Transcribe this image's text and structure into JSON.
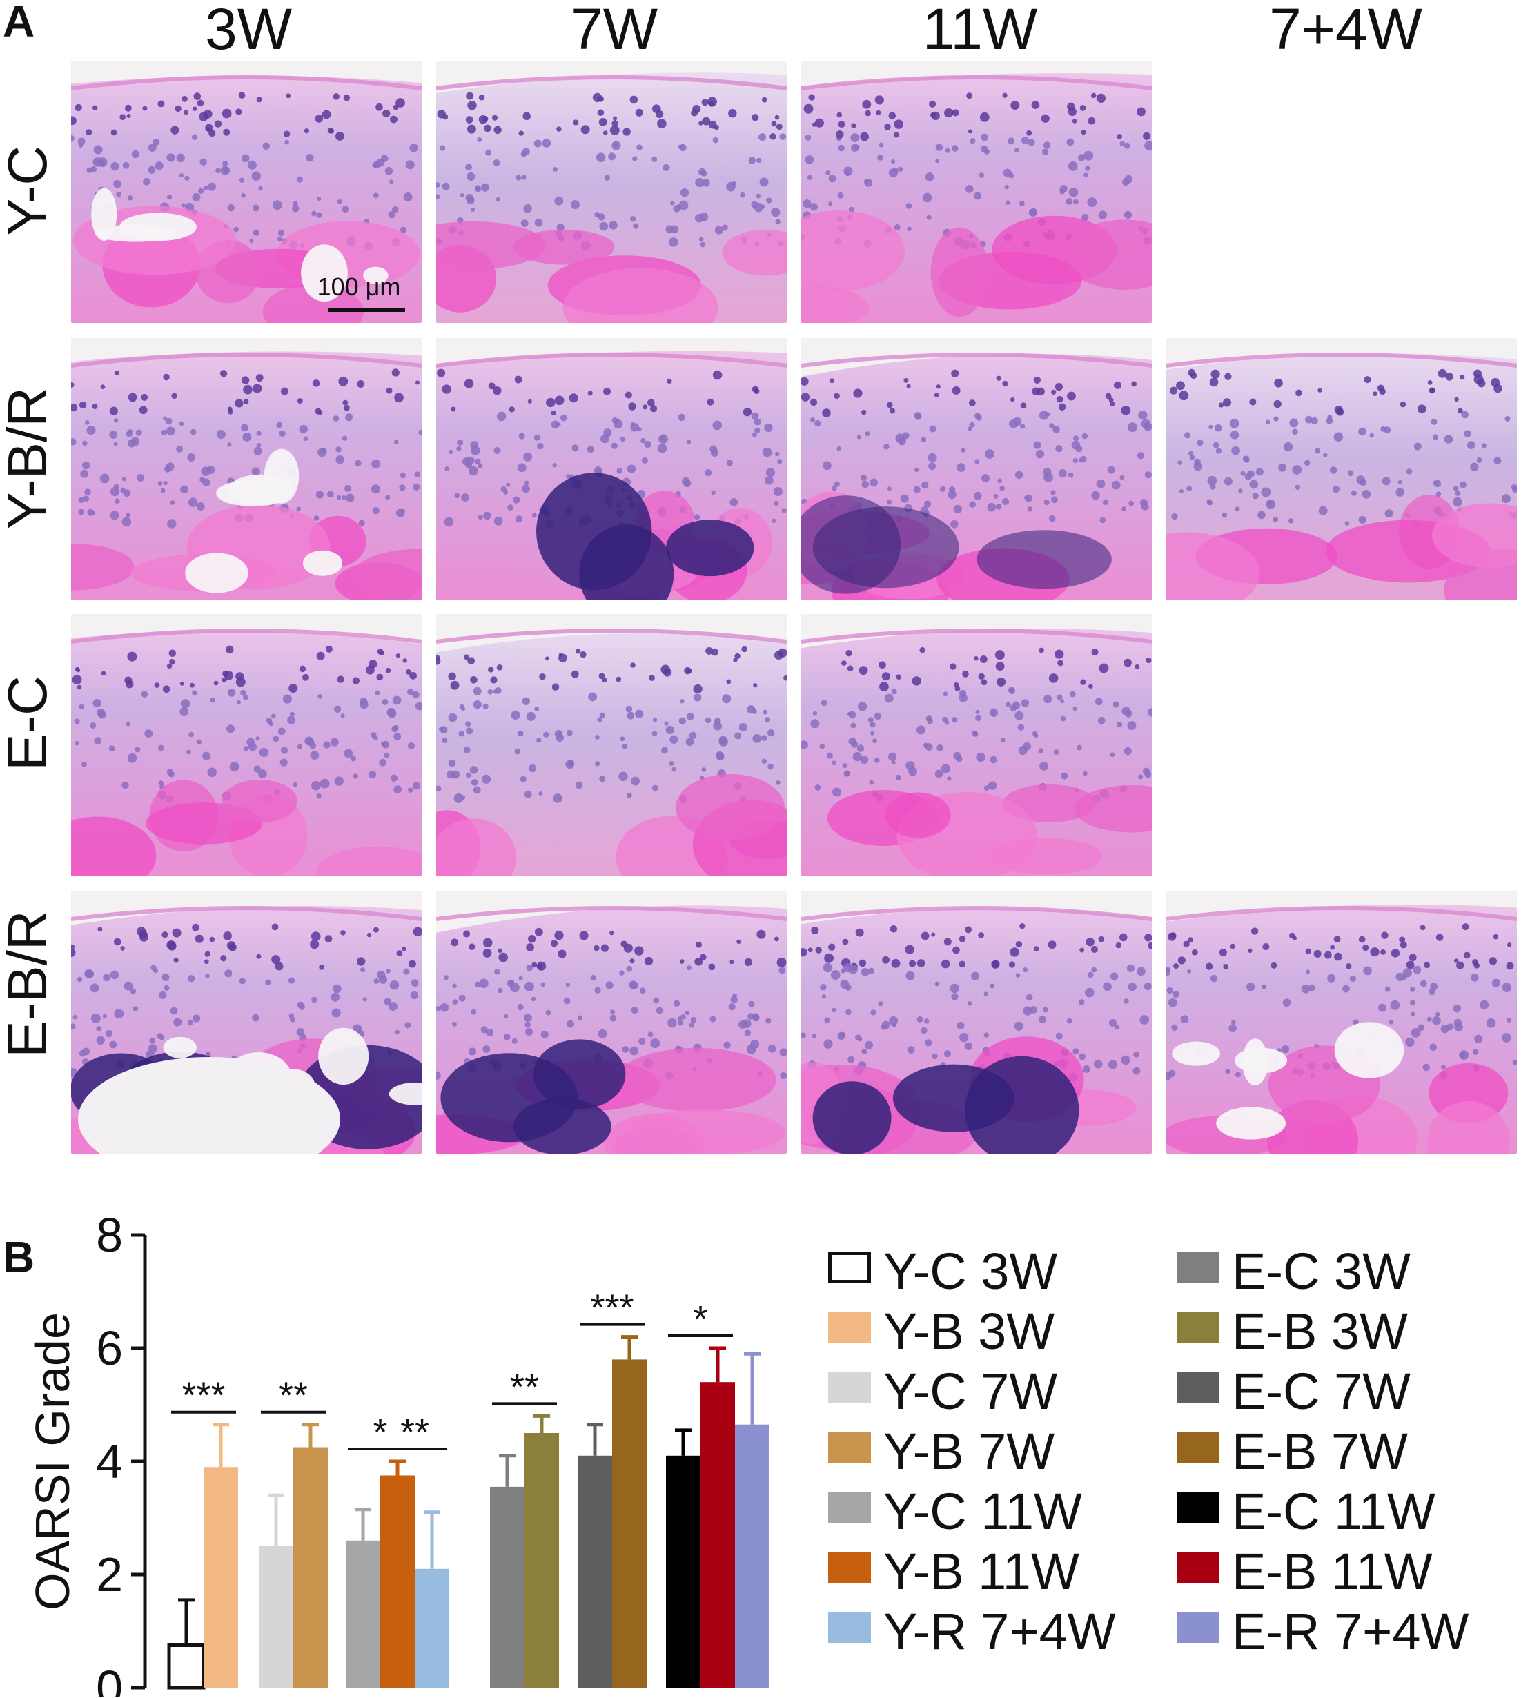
{
  "panel_a": {
    "letter": "A",
    "columns": [
      "3W",
      "7W",
      "11W",
      "7+4W"
    ],
    "rows": [
      "Y-C",
      "Y-B/R",
      "E-C",
      "E-B/R"
    ],
    "scale_bar": "100 μm",
    "panels": [
      {
        "row": 0,
        "col": 0,
        "style": "bone-heavy"
      },
      {
        "row": 0,
        "col": 1,
        "style": "cartilage"
      },
      {
        "row": 0,
        "col": 2,
        "style": "cartilage-pink"
      },
      {
        "row": 1,
        "col": 0,
        "style": "bone-heavy"
      },
      {
        "row": 1,
        "col": 1,
        "style": "marrow"
      },
      {
        "row": 1,
        "col": 2,
        "style": "marrow-light"
      },
      {
        "row": 1,
        "col": 3,
        "style": "cartilage"
      },
      {
        "row": 2,
        "col": 0,
        "style": "cartilage-pink"
      },
      {
        "row": 2,
        "col": 1,
        "style": "cartilage"
      },
      {
        "row": 2,
        "col": 2,
        "style": "cartilage-pink"
      },
      {
        "row": 3,
        "col": 0,
        "style": "damaged"
      },
      {
        "row": 3,
        "col": 1,
        "style": "marrow"
      },
      {
        "row": 3,
        "col": 2,
        "style": "marrow"
      },
      {
        "row": 3,
        "col": 3,
        "style": "bone-heavy"
      }
    ]
  },
  "panel_b": {
    "letter": "B"
  },
  "chart_data": {
    "type": "bar",
    "title": "",
    "xlabel": "",
    "ylabel": "OARSI Grade",
    "ylim": [
      0,
      8
    ],
    "yticks": [
      0,
      2,
      4,
      6,
      8
    ],
    "series": [
      {
        "name": "Y-C 3W",
        "value": 0.75,
        "error": 0.8,
        "color": "#ffffff",
        "outline": true
      },
      {
        "name": "Y-B 3W",
        "value": 3.9,
        "error": 0.75,
        "color": "#f2b984"
      },
      {
        "name": "Y-C 7W",
        "value": 2.5,
        "error": 0.9,
        "color": "#d6d6d6"
      },
      {
        "name": "Y-B 7W",
        "value": 4.25,
        "error": 0.4,
        "color": "#c8944e"
      },
      {
        "name": "Y-C 11W",
        "value": 2.6,
        "error": 0.55,
        "color": "#a6a6a6"
      },
      {
        "name": "Y-B 11W",
        "value": 3.75,
        "error": 0.25,
        "color": "#c6600f"
      },
      {
        "name": "Y-R 7+4W",
        "value": 2.1,
        "error": 1.0,
        "color": "#98bbe0"
      },
      {
        "name": "E-C 3W",
        "value": 3.55,
        "error": 0.55,
        "color": "#7f7f7f"
      },
      {
        "name": "E-B 3W",
        "value": 4.5,
        "error": 0.3,
        "color": "#8c7f3c"
      },
      {
        "name": "E-C 7W",
        "value": 4.1,
        "error": 0.55,
        "color": "#5e5e5e"
      },
      {
        "name": "E-B 7W",
        "value": 5.8,
        "error": 0.4,
        "color": "#96661e"
      },
      {
        "name": "E-C 11W",
        "value": 4.1,
        "error": 0.45,
        "color": "#000000"
      },
      {
        "name": "E-B 11W",
        "value": 5.4,
        "error": 0.6,
        "color": "#a80010"
      },
      {
        "name": "E-R 7+4W",
        "value": 4.65,
        "error": 1.25,
        "color": "#8b91cf"
      }
    ],
    "significance": [
      {
        "label": "***",
        "from": 0,
        "to": 1
      },
      {
        "label": "**",
        "from": 2,
        "to": 3
      },
      {
        "label": "*",
        "from": 4,
        "to": 5
      },
      {
        "label": "**",
        "from": 5,
        "to": 6
      },
      {
        "label": "**",
        "from": 7,
        "to": 8
      },
      {
        "label": "***",
        "from": 9,
        "to": 10
      },
      {
        "label": "*",
        "from": 11,
        "to": 12
      }
    ],
    "legend_position": "right"
  }
}
